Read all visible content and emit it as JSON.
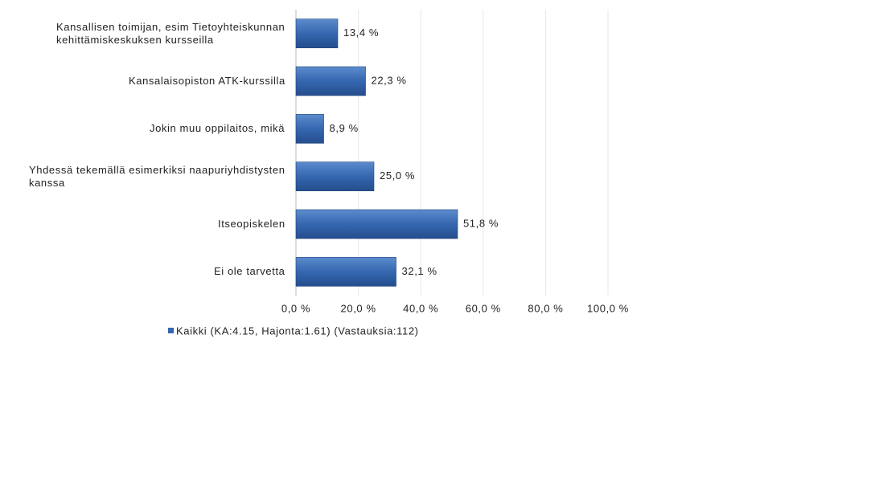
{
  "chart_data": {
    "type": "hbar",
    "categories": [
      "Kansallisen toimijan, esim Tietoyhteiskunnan kehittämiskeskuksen kursseilla",
      "Kansalaisopiston ATK-kurssilla",
      "Jokin muu oppilaitos, mikä",
      "Yhdessä tekemällä esimerkiksi naapuriyhdistysten kanssa",
      "Itseopiskelen",
      "Ei ole tarvetta"
    ],
    "series": [
      {
        "name": "Kaikki (KA:4.15, Hajonta:1.61) (Vastauksia:112)",
        "color": "#3567b0",
        "values": [
          13.4,
          22.3,
          8.9,
          25.0,
          51.8,
          32.1
        ],
        "value_labels": [
          "13,4 %",
          "22,3 %",
          "8,9 %",
          "25,0 %",
          "51,8 %",
          "32,1 %"
        ]
      }
    ],
    "xlim": [
      0,
      100
    ],
    "xticks": [
      {
        "value": 0,
        "label": "0,0 %"
      },
      {
        "value": 20,
        "label": "20,0 %"
      },
      {
        "value": 40,
        "label": "40,0 %"
      },
      {
        "value": 60,
        "label": "60,0 %"
      },
      {
        "value": 80,
        "label": "80,0 %"
      },
      {
        "value": 100,
        "label": "100,0 %"
      }
    ],
    "grid": true,
    "legend": "bottom"
  }
}
